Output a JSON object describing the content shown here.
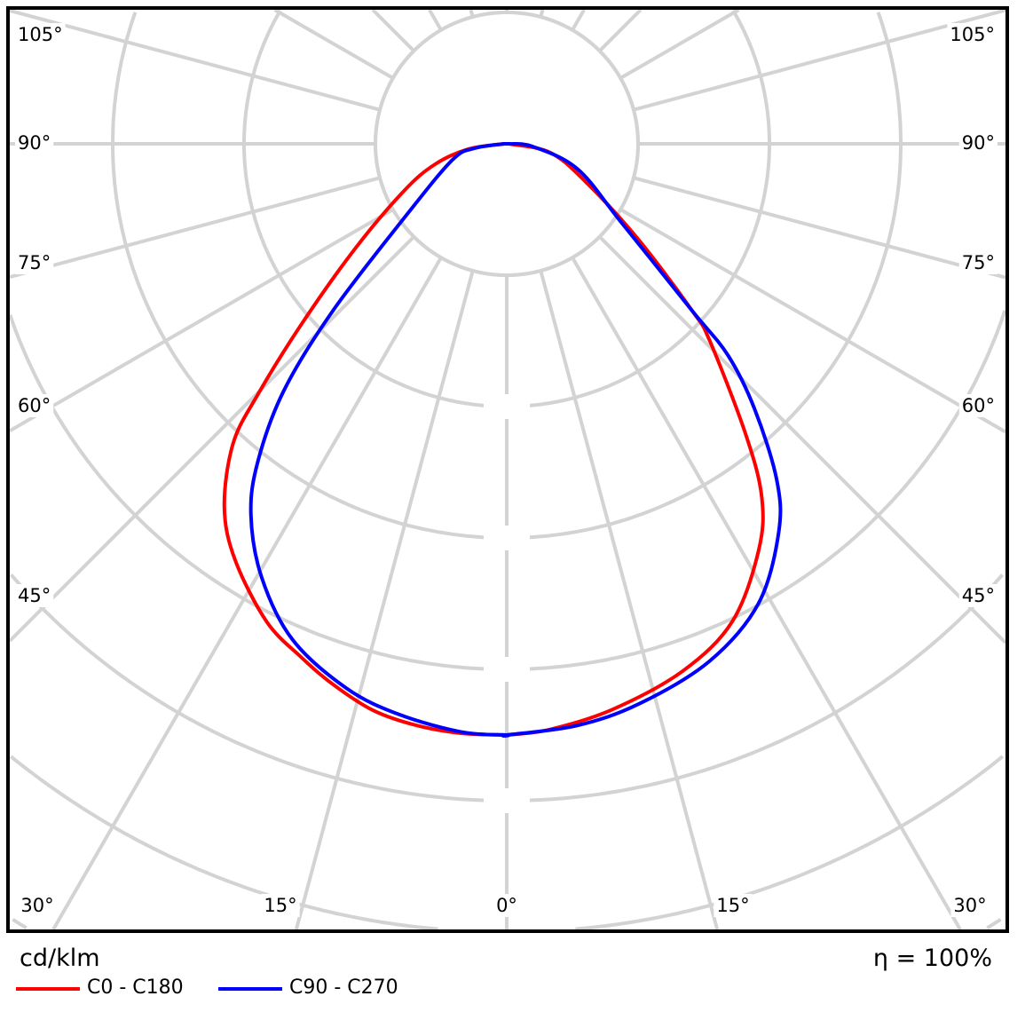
{
  "chart_data": {
    "type": "polar-line",
    "title": "",
    "unit_label": "cd/klm",
    "efficiency_label": "η = 100%",
    "angle_labels": {
      "left": [
        "105°",
        "90°",
        "75°",
        "60°",
        "45°"
      ],
      "bottom": [
        "30°",
        "15°",
        "0°",
        "15°",
        "30°"
      ],
      "right": [
        "105°",
        "90°",
        "75°",
        "60°",
        "45°"
      ]
    },
    "angle_grid_step_deg": 15,
    "radial_scale": "relative (ring units, unlabeled)",
    "grid": true,
    "legend_placement": "bottom-left",
    "series": [
      {
        "name": "C0 - C180",
        "color": "#ff0000",
        "left": [
          [
            0,
            4.5
          ],
          [
            4.4,
            4.5
          ],
          [
            8.8,
            4.48
          ],
          [
            13.3,
            4.43
          ],
          [
            17.9,
            4.32
          ],
          [
            21.8,
            4.21
          ],
          [
            26.7,
            4.07
          ],
          [
            33.2,
            3.78
          ],
          [
            37.9,
            3.5
          ],
          [
            42.4,
            3.09
          ],
          [
            44.8,
            2.69
          ],
          [
            48.7,
            2.08
          ],
          [
            55.4,
            1.4
          ],
          [
            65.4,
            0.86
          ],
          [
            74,
            0.57
          ],
          [
            82,
            0.3
          ],
          [
            90,
            0.02
          ]
        ],
        "right": [
          [
            0,
            4.5
          ],
          [
            4.2,
            4.47
          ],
          [
            10.6,
            4.38
          ],
          [
            18.5,
            4.23
          ],
          [
            25.3,
            4.02
          ],
          [
            31.8,
            3.64
          ],
          [
            35.8,
            3.32
          ],
          [
            39.4,
            2.87
          ],
          [
            45.8,
            2.16
          ],
          [
            48,
            1.9
          ],
          [
            54,
            1.24
          ],
          [
            64.2,
            0.67
          ],
          [
            78.5,
            0.34
          ],
          [
            90,
            0.02
          ]
        ]
      },
      {
        "name": "C90 - C270",
        "color": "#0000ff",
        "left": [
          [
            0,
            4.5
          ],
          [
            4.4,
            4.49
          ],
          [
            10.7,
            4.42
          ],
          [
            16.4,
            4.32
          ],
          [
            23.4,
            4.11
          ],
          [
            29.5,
            3.79
          ],
          [
            34.6,
            3.43
          ],
          [
            38.1,
            3.07
          ],
          [
            42.1,
            2.53
          ],
          [
            46.2,
            1.83
          ],
          [
            54.9,
            0.92
          ],
          [
            73.6,
            0.43
          ],
          [
            82,
            0.25
          ],
          [
            90,
            0.02
          ]
        ],
        "right": [
          [
            0,
            4.5
          ],
          [
            6.9,
            4.46
          ],
          [
            13.3,
            4.38
          ],
          [
            21.4,
            4.23
          ],
          [
            28.7,
            3.99
          ],
          [
            35,
            3.61
          ],
          [
            38.8,
            3.28
          ],
          [
            43.1,
            2.76
          ],
          [
            46.3,
            2.33
          ],
          [
            48,
            1.9
          ],
          [
            55.7,
            1.05
          ],
          [
            70.5,
            0.57
          ],
          [
            84,
            0.2
          ],
          [
            90,
            0.02
          ]
        ]
      }
    ]
  }
}
